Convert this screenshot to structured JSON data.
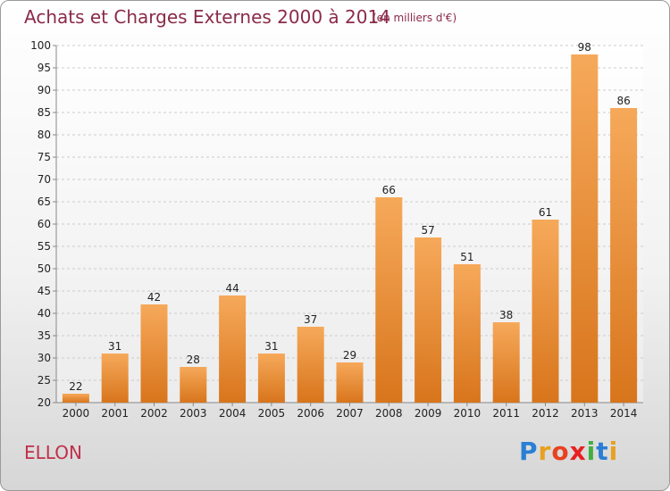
{
  "title": "Achats et Charges Externes 2000 à 2014",
  "subtitle": "(en milliers d'€)",
  "city": "ELLON",
  "logo": {
    "text": "Proxiti",
    "letters": [
      "P",
      "r",
      "o",
      "x",
      "i",
      "t",
      "i"
    ],
    "colors": [
      "#2a7fd4",
      "#e8a020",
      "#e84020",
      "#e82020",
      "#40b040",
      "#2a7fd4",
      "#e8a020"
    ]
  },
  "chart_data": {
    "type": "bar",
    "categories": [
      "2000",
      "2001",
      "2002",
      "2003",
      "2004",
      "2005",
      "2006",
      "2007",
      "2008",
      "2009",
      "2010",
      "2011",
      "2012",
      "2013",
      "2014"
    ],
    "values": [
      22,
      31,
      42,
      28,
      44,
      31,
      37,
      29,
      66,
      57,
      51,
      38,
      61,
      98,
      86
    ],
    "ylim": [
      20,
      100
    ],
    "yticks": [
      20,
      25,
      30,
      35,
      40,
      45,
      50,
      55,
      60,
      65,
      70,
      75,
      80,
      85,
      90,
      95,
      100
    ],
    "grid": true,
    "bar_color": "#f0902a"
  }
}
